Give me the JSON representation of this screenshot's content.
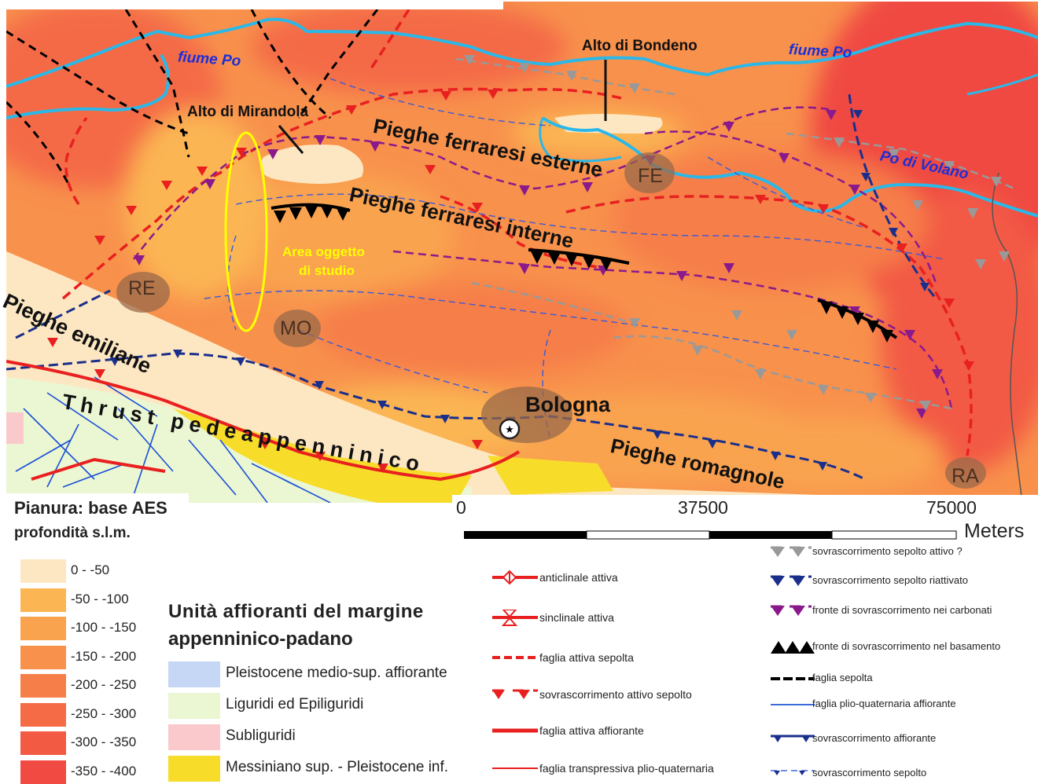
{
  "map": {
    "labels": {
      "fiume_po_w": "fiume Po",
      "fiume_po_e": "fiume Po",
      "po_di_volano": "Po di Volano",
      "alto_bondeno": "Alto di Bondeno",
      "alto_mirandola": "Alto di Mirandola",
      "pieghe_ferr_est": "Pieghe ferraresi esterne",
      "pieghe_ferr_int": "Pieghe ferraresi interne",
      "pieghe_emiliane": "Pieghe emiliane",
      "pieghe_romagnole": "Pieghe romagnole",
      "thrust": "Thrust pedeappenninico",
      "area_studio_1": "Area oggetto",
      "area_studio_2": "di studio",
      "re": "RE",
      "mo": "MO",
      "fe": "FE",
      "ra": "RA",
      "bologna": "Bologna"
    },
    "colors": {
      "river": "#2ab8e8",
      "study_area": "#ffff00",
      "active_fault": "#e82020",
      "thrust_grey": "#999999",
      "thrust_blue": "#1a2f8c",
      "thrust_purple": "#8a1a8c",
      "basement": "#000000"
    }
  },
  "depth_legend": {
    "title_1": "Pianura: base AES",
    "title_2": "profondità s.l.m.",
    "classes": [
      {
        "label": "0 - -50",
        "color": "#fde7c2"
      },
      {
        "label": "-50 - -100",
        "color": "#fbb553"
      },
      {
        "label": "-100 - -150",
        "color": "#f9a34f"
      },
      {
        "label": "-150 - -200",
        "color": "#f8914c"
      },
      {
        "label": "-200 - -250",
        "color": "#f67e49"
      },
      {
        "label": "-250 - -300",
        "color": "#f46b46"
      },
      {
        "label": "-300 - -350",
        "color": "#f25a44"
      },
      {
        "label": "-350 - -400",
        "color": "#f04a42"
      }
    ]
  },
  "units_legend": {
    "title_1": "Unità affioranti del margine",
    "title_2": "appenninico-padano",
    "items": [
      {
        "label": "Pleistocene medio-sup. affiorante",
        "color": "#c6d6f5"
      },
      {
        "label": "Liguridi ed Epiliguridi",
        "color": "#ebf7d2"
      },
      {
        "label": "Subliguridi",
        "color": "#f9c9cb"
      },
      {
        "label": "Messiniano sup. - Pleistocene inf.",
        "color": "#f7dc2a"
      }
    ]
  },
  "scale": {
    "ticks": [
      "0",
      "37500",
      "75000"
    ],
    "unit": "Meters"
  },
  "symbol_legend": {
    "col1": [
      {
        "label": "anticlinale attiva",
        "icon": "anticline-icon"
      },
      {
        "label": "sinclinale attiva",
        "icon": "syncline-icon"
      },
      {
        "label": "faglia attiva sepolta",
        "icon": "buried-fault-icon"
      },
      {
        "label": "sovrascorrimento attivo sepolto",
        "icon": "buried-thrust-icon"
      },
      {
        "label": "faglia attiva affiorante",
        "icon": "outcrop-fault-icon"
      },
      {
        "label": "faglia transpressiva plio-quaternaria",
        "icon": "transpressive-fault-icon"
      }
    ],
    "col2": [
      {
        "label": "sovrascorrimento sepolto attivo ?",
        "icon": "grey-thrust-icon"
      },
      {
        "label": "sovrascorrimento sepolto riattivato",
        "icon": "blue-thrust-icon"
      },
      {
        "label": "fronte di sovrascorrimento nei carbonati",
        "icon": "purple-thrust-icon"
      },
      {
        "label": "fronte di sovrascorrimento nel basamento",
        "icon": "black-thrust-icon"
      },
      {
        "label": "faglia sepolta",
        "icon": "black-dashed-icon"
      },
      {
        "label": "faglia plio-quaternaria affiorante",
        "icon": "thin-blue-line-icon"
      },
      {
        "label": "sovrascorrimento affiorante",
        "icon": "blue-outcrop-thrust-icon"
      },
      {
        "label": "sovrascorrimento sepolto",
        "icon": "blue-buried-thrust-icon"
      }
    ]
  }
}
